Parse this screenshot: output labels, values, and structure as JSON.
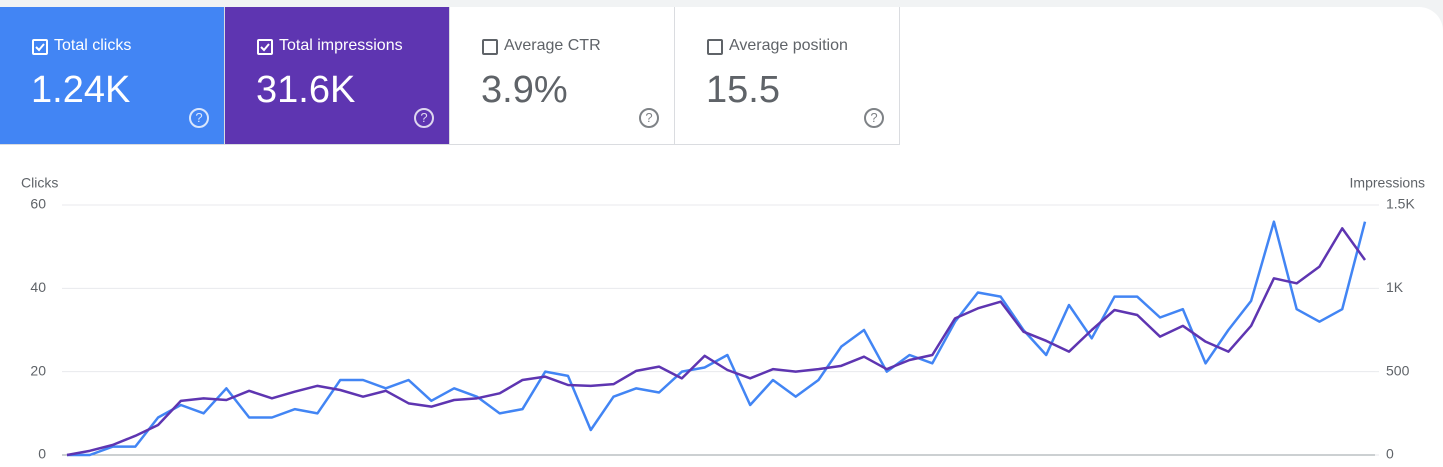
{
  "cards": [
    {
      "title": "Total clicks",
      "value": "1.24K",
      "checked": true,
      "background": "#4285f4",
      "text_color": "#ffffff"
    },
    {
      "title": "Total impressions",
      "value": "31.6K",
      "checked": true,
      "background": "#5e35b1",
      "text_color": "#ffffff"
    },
    {
      "title": "Average CTR",
      "value": "3.9%",
      "checked": false,
      "background": "#ffffff",
      "text_color": "#5f6368"
    },
    {
      "title": "Average position",
      "value": "15.5",
      "checked": false,
      "background": "#ffffff",
      "text_color": "#5f6368"
    }
  ],
  "chart_data": {
    "type": "line",
    "y_label": "Clicks",
    "y2_label": "Impressions",
    "x": [
      0,
      1,
      2,
      3,
      4,
      5,
      6,
      7,
      8,
      9,
      10,
      11,
      12,
      13,
      14,
      15,
      16,
      17,
      18,
      19,
      20,
      21,
      22,
      23,
      24,
      25,
      26,
      27,
      28,
      29,
      30,
      31,
      32,
      33,
      34,
      35,
      36,
      37,
      38,
      39,
      40,
      41,
      42,
      43,
      44,
      45,
      46,
      47,
      48,
      49,
      50,
      51,
      52,
      53,
      54,
      55,
      56,
      57
    ],
    "xlim": [
      0,
      57
    ],
    "ylim": [
      0,
      60
    ],
    "yticks": [
      0,
      20,
      40,
      60
    ],
    "y2lim": [
      0,
      1500
    ],
    "y2ticks": [
      0,
      500,
      {
        "value": 1000,
        "label": "1K"
      },
      {
        "value": 1500,
        "label": "1.5K"
      }
    ],
    "grid": true,
    "series": [
      {
        "color": "#4285f4",
        "axis": "y",
        "values": [
          0,
          0,
          2,
          2,
          9,
          12,
          10,
          16,
          9,
          9,
          11,
          10,
          18,
          18,
          16,
          18,
          13,
          16,
          14,
          10,
          11,
          20,
          19,
          6,
          14,
          16,
          15,
          20,
          21,
          24,
          12,
          18,
          14,
          18,
          26,
          30,
          20,
          24,
          22,
          32,
          39,
          38,
          30,
          24,
          36,
          28,
          38,
          38,
          33,
          35,
          22,
          30,
          37,
          56,
          35,
          32,
          35,
          56
        ]
      },
      {
        "color": "#5e35b1",
        "axis": "y2",
        "values": [
          0,
          25,
          60,
          115,
          180,
          325,
          340,
          330,
          385,
          340,
          380,
          415,
          390,
          350,
          385,
          310,
          290,
          330,
          340,
          370,
          450,
          470,
          420,
          415,
          425,
          505,
          530,
          460,
          595,
          510,
          460,
          515,
          500,
          515,
          535,
          590,
          515,
          570,
          600,
          820,
          880,
          920,
          740,
          685,
          620,
          750,
          870,
          840,
          710,
          775,
          680,
          620,
          775,
          1060,
          1030,
          1130,
          1360,
          1170
        ]
      }
    ]
  }
}
